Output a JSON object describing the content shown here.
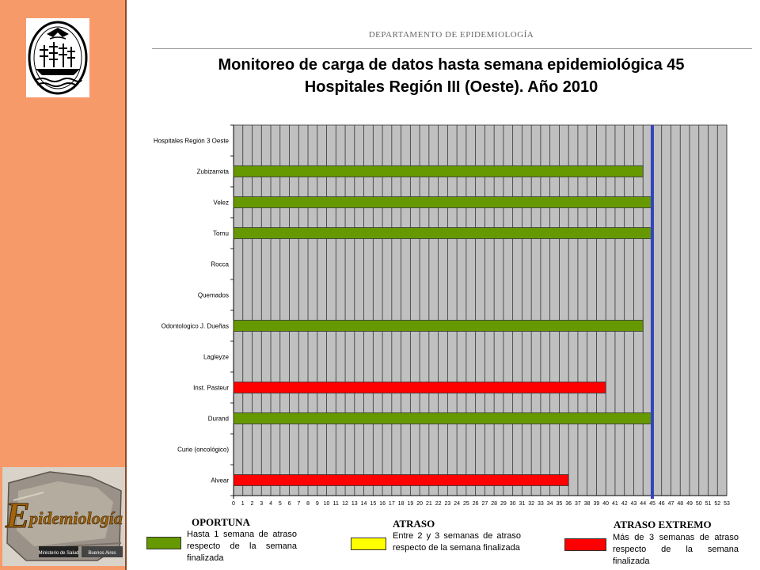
{
  "header": {
    "department": "DEPARTAMENTO DE EPIDEMIOLOGÍA",
    "title_line1": "Monitoreo de carga de datos hasta semana epidemiológica 45",
    "title_line2": "Hospitales Región III (Oeste). Año 2010"
  },
  "logos": {
    "seal_icon": "buenos-aires-city-seal",
    "epidemiologia_wordmark": "Epidemiología",
    "ministry_label": "Ministerio de Salud",
    "city_label": "Buenos Aires"
  },
  "colors": {
    "sidebar": "#f79a6a",
    "oportuna": "#669900",
    "atraso": "#ffff00",
    "atraso_extremo": "#ff0000",
    "reference_line": "#3344bb",
    "plot_bg": "#c0c0c0"
  },
  "chart_data": {
    "type": "bar",
    "orientation": "horizontal",
    "categories": [
      "Hospitales Región 3 Oeste",
      "Zubizarreta",
      "Velez",
      "Tornu",
      "Rocca",
      "Quemados",
      "Odontologico J. Dueñas",
      "Lagleyze",
      "Inst. Pasteur",
      "Durand",
      "Curie (oncológico)",
      "Alvear"
    ],
    "values": [
      null,
      44,
      45,
      45,
      null,
      null,
      44,
      null,
      40,
      45,
      null,
      36
    ],
    "status": [
      null,
      "oportuna",
      "oportuna",
      "oportuna",
      null,
      null,
      "oportuna",
      null,
      "atraso_extremo",
      "oportuna",
      null,
      "atraso_extremo"
    ],
    "xlim": [
      0,
      53
    ],
    "x_ticks": [
      0,
      1,
      2,
      3,
      4,
      5,
      6,
      7,
      8,
      9,
      10,
      11,
      12,
      13,
      14,
      15,
      16,
      17,
      18,
      19,
      20,
      21,
      22,
      23,
      24,
      25,
      26,
      27,
      28,
      29,
      30,
      31,
      32,
      33,
      34,
      35,
      36,
      37,
      38,
      39,
      40,
      41,
      42,
      43,
      44,
      45,
      46,
      47,
      48,
      49,
      50,
      51,
      52,
      53
    ],
    "reference_week": 45,
    "grid": true
  },
  "legend": [
    {
      "key": "oportuna",
      "title": "OPORTUNA",
      "text": "Hasta 1 semana de atraso respecto de la semana finalizada"
    },
    {
      "key": "atraso",
      "title": "ATRASO",
      "text": "Entre 2 y 3 semanas de atraso respecto de la semana finalizada"
    },
    {
      "key": "atraso_extremo",
      "title": "ATRASO EXTREMO",
      "text": "Más de 3 semanas de atraso respecto de la semana finalizada"
    }
  ]
}
